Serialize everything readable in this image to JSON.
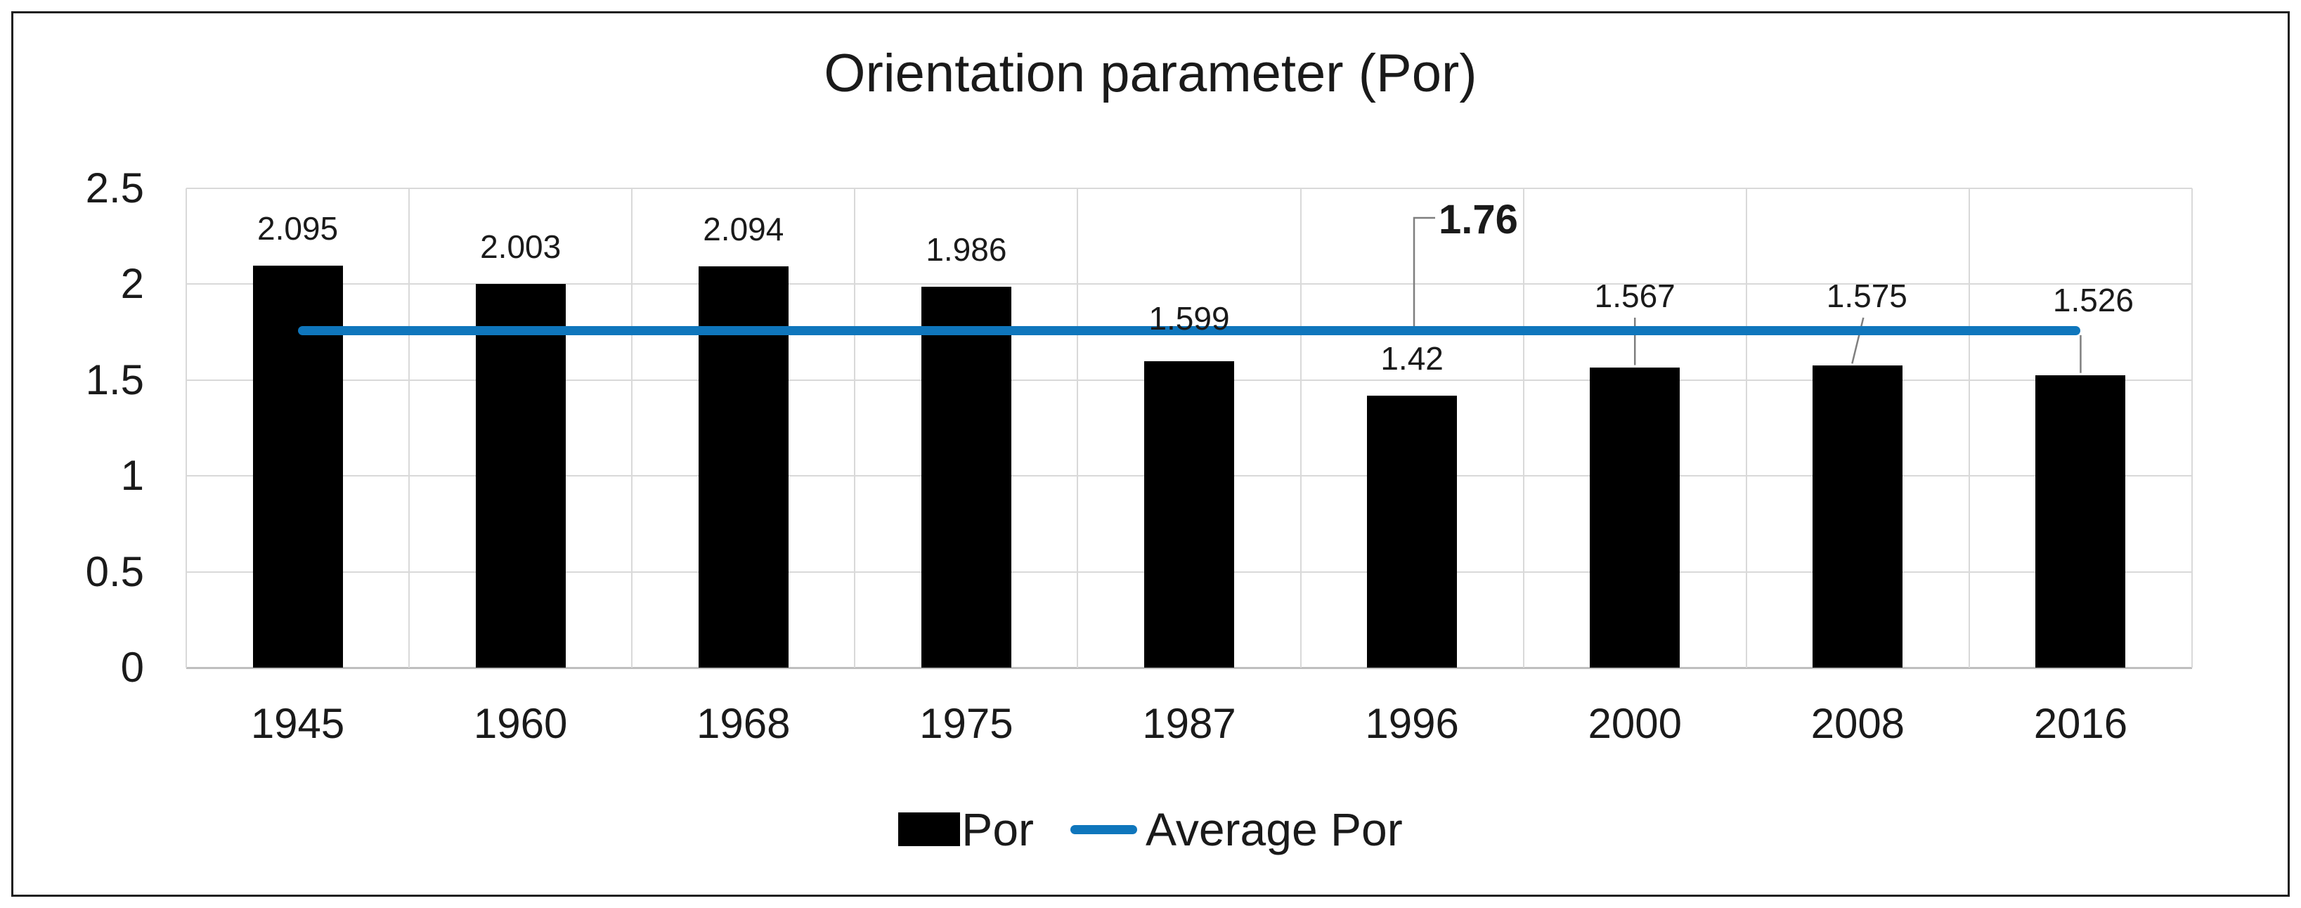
{
  "chart_data": {
    "type": "bar",
    "title": "Orientation parameter (Por)",
    "categories": [
      "1945",
      "1960",
      "1968",
      "1975",
      "1987",
      "1996",
      "2000",
      "2008",
      "2016"
    ],
    "series": [
      {
        "name": "Por",
        "type": "bar",
        "color": "#000000",
        "values": [
          2.095,
          2.003,
          2.094,
          1.986,
          1.599,
          1.42,
          1.567,
          1.575,
          1.526
        ],
        "value_labels": [
          "2.095",
          "2.003",
          "2.094",
          "1.986",
          "1.599",
          "1.42",
          "1.567",
          "1.575",
          "1.526"
        ]
      },
      {
        "name": "Average Por",
        "type": "line",
        "color": "#0f76bc",
        "value": 1.76,
        "value_label": "1.76"
      }
    ],
    "ylim": [
      0,
      2.5
    ],
    "yticks": [
      {
        "value": 2.5,
        "label": "2.5"
      },
      {
        "value": 2.0,
        "label": "2"
      },
      {
        "value": 1.5,
        "label": "1.5"
      },
      {
        "value": 1.0,
        "label": "1"
      },
      {
        "value": 0.5,
        "label": "0.5"
      },
      {
        "value": 0.0,
        "label": "0"
      }
    ],
    "grid": "both",
    "legend_position": "bottom",
    "colors": {
      "bar": "#000000",
      "average_line": "#0f76bc",
      "gridline": "#d9d9d9",
      "axis_line": "#bfbfbf",
      "leader_line": "#7f7f7f",
      "text": "#1a1a1a"
    }
  }
}
